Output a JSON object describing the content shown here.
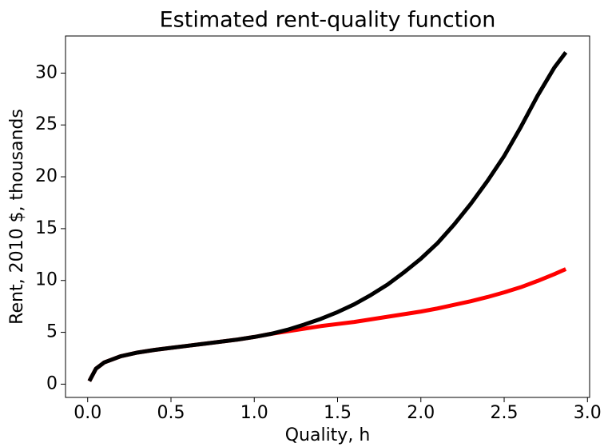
{
  "chart_data": {
    "type": "line",
    "title": "Estimated rent-quality function",
    "xlabel": "Quality, h",
    "ylabel": "Rent, 2010 $, thousands",
    "x": [
      0.01,
      0.05,
      0.1,
      0.2,
      0.3,
      0.4,
      0.5,
      0.6,
      0.7,
      0.8,
      0.9,
      1.0,
      1.1,
      1.2,
      1.3,
      1.4,
      1.5,
      1.6,
      1.7,
      1.8,
      1.9,
      2.0,
      2.1,
      2.2,
      2.3,
      2.4,
      2.5,
      2.6,
      2.7,
      2.8,
      2.87
    ],
    "series": [
      {
        "color": "#ff0000",
        "values": [
          0.3,
          1.5,
          2.1,
          2.7,
          3.05,
          3.3,
          3.5,
          3.7,
          3.9,
          4.1,
          4.3,
          4.55,
          4.85,
          5.1,
          5.35,
          5.6,
          5.8,
          6.0,
          6.25,
          6.5,
          6.75,
          7.0,
          7.3,
          7.65,
          8.0,
          8.4,
          8.85,
          9.35,
          9.95,
          10.6,
          11.1
        ]
      },
      {
        "color": "#000000",
        "values": [
          0.3,
          1.5,
          2.1,
          2.7,
          3.05,
          3.3,
          3.5,
          3.7,
          3.9,
          4.1,
          4.3,
          4.55,
          4.85,
          5.25,
          5.75,
          6.3,
          6.95,
          7.7,
          8.6,
          9.6,
          10.8,
          12.1,
          13.6,
          15.4,
          17.4,
          19.6,
          22.0,
          24.8,
          27.8,
          30.5,
          32.0
        ]
      }
    ],
    "xlim": [
      -0.133,
      3.013
    ],
    "xticks": [
      {
        "value": 0,
        "label": "0.0"
      },
      {
        "value": 0.5,
        "label": "0.5"
      },
      {
        "value": 1,
        "label": "1.0"
      },
      {
        "value": 1.5,
        "label": "1.5"
      },
      {
        "value": 2,
        "label": "2.0"
      },
      {
        "value": 2.5,
        "label": "2.5"
      },
      {
        "value": 3,
        "label": "3.0"
      }
    ],
    "ylim": [
      -1.28,
      33.58
    ],
    "yticks": [
      0,
      5,
      10,
      15,
      20,
      25,
      30
    ],
    "grid": false
  }
}
